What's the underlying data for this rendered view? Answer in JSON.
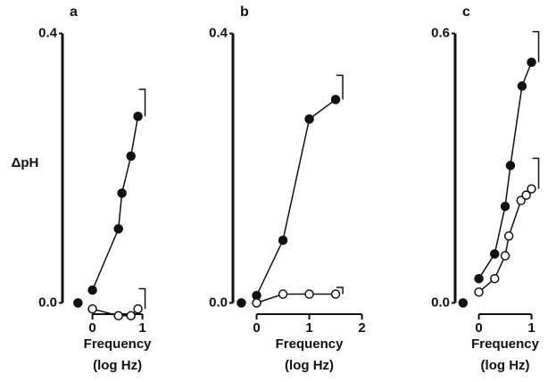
{
  "chart_data": [
    {
      "type": "line",
      "title": "a",
      "ylabel": "ΔpH",
      "xlabel": [
        "Frequency",
        "(log Hz)"
      ],
      "xlim": [
        -0.6,
        1.05
      ],
      "ylim": [
        -0.03,
        0.41
      ],
      "xticks": [
        0,
        1
      ],
      "yticks": [
        {
          "value": 0,
          "label": "0.0"
        },
        0.4
      ],
      "series": [
        {
          "color": "#111111",
          "marker": "filled",
          "connect": true,
          "x": [
            0,
            0.52,
            0.59,
            0.77,
            0.91
          ],
          "values": [
            0.019,
            0.11,
            0.163,
            0.218,
            0.277
          ],
          "errors": [
            null,
            null,
            null,
            null,
            0.04
          ]
        },
        {
          "color": "#111111",
          "marker": "open",
          "connect": true,
          "x": [
            0,
            0.52,
            0.77,
            0.91
          ],
          "values": [
            -0.009,
            -0.019,
            -0.019,
            -0.009
          ],
          "errors": [
            null,
            null,
            null,
            0.03
          ]
        },
        {
          "color": "#111111",
          "marker": "filled",
          "connect": false,
          "x": [
            -0.29
          ],
          "values": [
            0
          ]
        }
      ]
    },
    {
      "type": "line",
      "title": "b",
      "xlabel": [
        "Frequency",
        "(log Hz)"
      ],
      "xlim": [
        -0.45,
        2.05
      ],
      "ylim": [
        -0.03,
        0.41
      ],
      "xticks": [
        0,
        1,
        2
      ],
      "yticks": [
        {
          "value": 0,
          "label": "0.0"
        },
        0.4
      ],
      "series": [
        {
          "color": "#111111",
          "marker": "filled",
          "connect": true,
          "x": [
            0,
            0.5,
            1,
            1.5
          ],
          "values": [
            0.011,
            0.093,
            0.273,
            0.302
          ],
          "errors": [
            null,
            null,
            null,
            0.036
          ]
        },
        {
          "color": "#111111",
          "marker": "open",
          "connect": true,
          "x": [
            0,
            0.5,
            1,
            1.5
          ],
          "values": [
            0,
            0.013,
            0.013,
            0.013
          ],
          "errors": [
            null,
            null,
            null,
            0.01
          ]
        },
        {
          "color": "#111111",
          "marker": "filled",
          "connect": false,
          "x": [
            -0.29
          ],
          "values": [
            0
          ]
        }
      ]
    },
    {
      "type": "line",
      "title": "c",
      "xlabel": [
        "Frequency",
        "(log Hz)"
      ],
      "xlim": [
        -0.45,
        1.05
      ],
      "ylim": [
        -0.045,
        0.615
      ],
      "xticks": [
        0,
        1
      ],
      "yticks": [
        {
          "value": 0,
          "label": "0.0"
        },
        0.6
      ],
      "series": [
        {
          "color": "#111111",
          "marker": "filled",
          "connect": true,
          "x": [
            0,
            0.3,
            0.5,
            0.6,
            0.82,
            1.0
          ],
          "values": [
            0.054,
            0.109,
            0.215,
            0.306,
            0.483,
            0.536
          ],
          "errors": [
            null,
            null,
            null,
            null,
            null,
            0.068
          ]
        },
        {
          "color": "#111111",
          "marker": "open",
          "connect": true,
          "x": [
            0,
            0.3,
            0.5,
            0.57,
            0.8,
            0.9,
            1.0
          ],
          "values": [
            0.024,
            0.054,
            0.105,
            0.149,
            0.228,
            0.24,
            0.254
          ],
          "errors": [
            null,
            null,
            null,
            null,
            null,
            null,
            0.068
          ]
        },
        {
          "color": "#111111",
          "marker": "filled",
          "connect": false,
          "x": [
            -0.3
          ],
          "values": [
            0
          ]
        }
      ]
    }
  ]
}
